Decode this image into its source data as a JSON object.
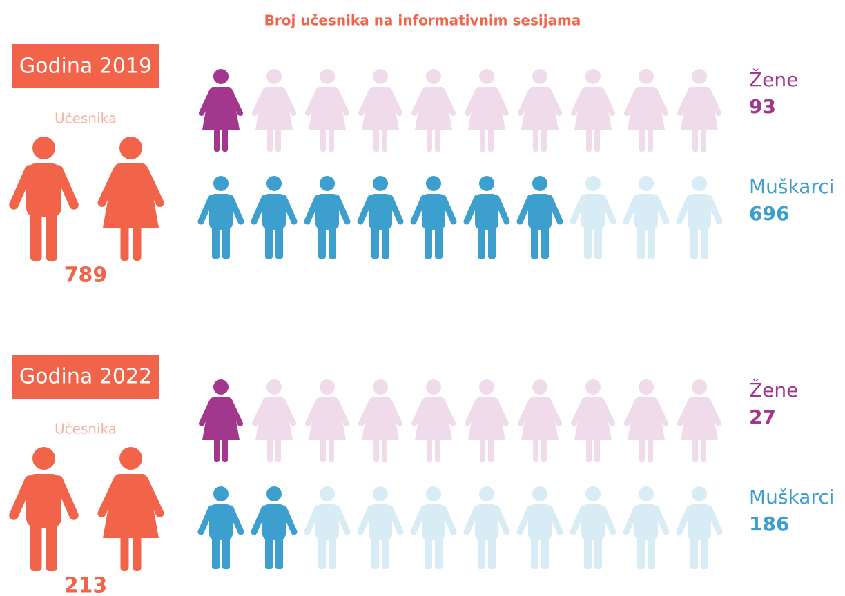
{
  "title": "Broj učesnika na informativnim sesijama",
  "chart_data": [
    {
      "type": "pictogram",
      "label": "Godina 2019",
      "total_label": "Učesnika",
      "total": 789,
      "color": "#f2644a",
      "icons": 10,
      "series": [
        {
          "name": "Žene",
          "icon": "woman",
          "color": "#a2388d",
          "faded": "#efdbea",
          "value": 93,
          "filled": 1
        },
        {
          "name": "Muškarci",
          "icon": "man",
          "color": "#3d9fcd",
          "faded": "#d8ecf5",
          "value": 696,
          "filled": 7
        }
      ]
    },
    {
      "type": "pictogram",
      "label": "Godina 2022",
      "total_label": "Učesnika",
      "total": 213,
      "color": "#f2644a",
      "icons": 10,
      "series": [
        {
          "name": "Žene",
          "icon": "woman",
          "color": "#a2388d",
          "faded": "#efdbea",
          "value": 27,
          "filled": 1
        },
        {
          "name": "Muškarci",
          "icon": "man",
          "color": "#3d9fcd",
          "faded": "#d8ecf5",
          "value": 186,
          "filled": 2
        }
      ]
    }
  ]
}
